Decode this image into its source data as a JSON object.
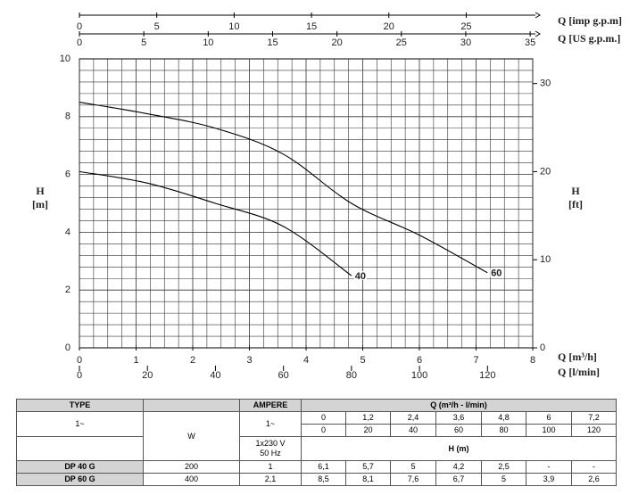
{
  "chart_data": {
    "type": "line",
    "x_axes": [
      {
        "label": "Q [m³/h]",
        "position": "bottom",
        "lim": [
          0,
          8
        ],
        "ticks": [
          0,
          1,
          2,
          3,
          4,
          5,
          6,
          7,
          8
        ]
      },
      {
        "label": "Q [l/min]",
        "position": "bottom",
        "lim": [
          0,
          133.3
        ],
        "ticks": [
          0,
          20,
          40,
          60,
          80,
          100,
          120
        ]
      },
      {
        "label": "Q [US g.p.m.]",
        "position": "top",
        "lim": [
          0,
          35.2
        ],
        "ticks": [
          0,
          5,
          10,
          15,
          20,
          25,
          30,
          35
        ]
      },
      {
        "label": "Q [imp g.p.m]",
        "position": "top",
        "lim": [
          0,
          29.3
        ],
        "ticks": [
          0,
          5,
          10,
          15,
          20,
          25
        ]
      }
    ],
    "ylabel": "H",
    "yunit": "[m]",
    "ylim": [
      0,
      10
    ],
    "yticks": [
      0,
      2,
      4,
      6,
      8,
      10
    ],
    "y2label": "H",
    "y2unit": "[ft]",
    "y2lim": [
      0,
      32.8
    ],
    "y2ticks": [
      0,
      10,
      20,
      30
    ],
    "grid": true,
    "series": [
      {
        "name": "40",
        "color": "#000000",
        "x": [
          0,
          1.2,
          2.4,
          3.6,
          4.8
        ],
        "values": [
          6.1,
          5.7,
          5,
          4.2,
          2.5
        ]
      },
      {
        "name": "60",
        "color": "#000000",
        "x": [
          0,
          1.2,
          2.4,
          3.6,
          4.8,
          6,
          7.2
        ],
        "values": [
          8.5,
          8.1,
          7.6,
          6.7,
          5,
          3.9,
          2.6
        ]
      }
    ]
  },
  "table": {
    "type_header": "TYPE",
    "phase": "1~",
    "power_header": "W",
    "ampere_header": "AMPERE",
    "ampere_phase": "1~",
    "supply": [
      "1x230 V",
      "50 Hz"
    ],
    "flow_header": "Q (m³/h - l/min)",
    "flow_m3h": [
      "0",
      "1,2",
      "2,4",
      "3,6",
      "4,8",
      "6",
      "7,2"
    ],
    "flow_lmin": [
      "0",
      "20",
      "40",
      "60",
      "80",
      "100",
      "120"
    ],
    "head_header": "H (m)",
    "rows": [
      [
        "DP 40 G",
        "200",
        "1",
        "6,1",
        "5,7",
        "5",
        "4,2",
        "2,5",
        "-",
        "-"
      ],
      [
        "DP 60 G",
        "400",
        "2,1",
        "8,5",
        "8,1",
        "7,6",
        "6,7",
        "5",
        "3,9",
        "2,6"
      ]
    ]
  }
}
